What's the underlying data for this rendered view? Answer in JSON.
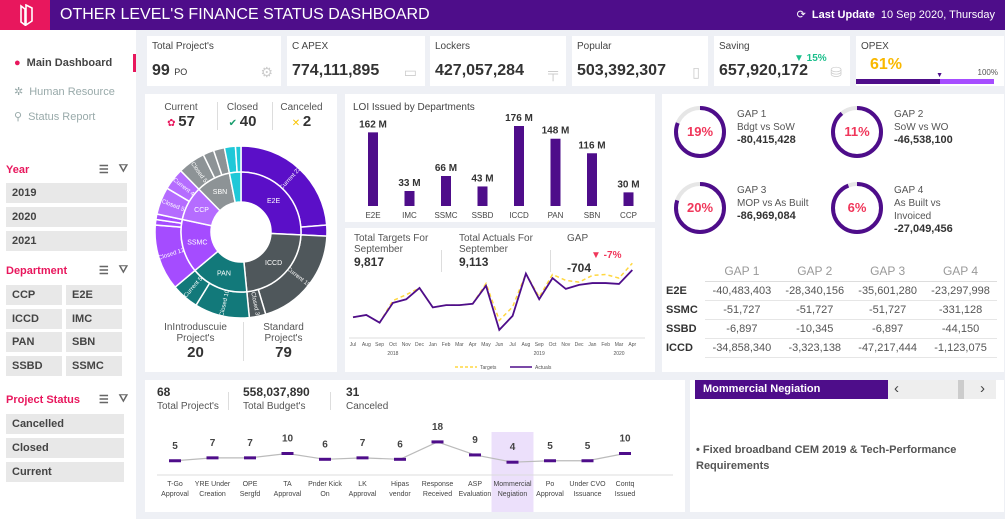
{
  "header": {
    "title": "OTHER LEVEL'S FINANCE STATUS DASHBOARD",
    "last_update_label": "Last Update",
    "last_update_value": "10 Sep 2020, Thursday"
  },
  "sidebar": {
    "nav": [
      {
        "label": "Main Dashboard"
      },
      {
        "label": "Human Resource"
      },
      {
        "label": "Status Report"
      }
    ],
    "year_label": "Year",
    "years": [
      "2019",
      "2020",
      "2021"
    ],
    "department_label": "Department",
    "departments": [
      "CCP",
      "E2E",
      "ICCD",
      "IMC",
      "PAN",
      "SBN",
      "SSBD",
      "SSMC"
    ],
    "status_label": "Project Status",
    "statuses": [
      "Cancelled",
      "Closed",
      "Current"
    ]
  },
  "kpis": [
    {
      "label": "Total Project's",
      "value": "99",
      "unit": "PO"
    },
    {
      "label": "C APEX",
      "value": "774,111,895"
    },
    {
      "label": "Lockers",
      "value": "427,057,284"
    },
    {
      "label": "Popular",
      "value": "503,392,307"
    },
    {
      "label": "Saving",
      "value": "657,920,172",
      "change": "▼ 15%"
    },
    {
      "label": "OPEX",
      "value": "61%",
      "max_label": "100%",
      "progress": 0.61
    }
  ],
  "status": {
    "current_label": "Current",
    "current": "57",
    "closed_label": "Closed",
    "closed": "40",
    "canceled_label": "Canceled",
    "canceled": "2",
    "intro_label": "InIntroduscuie Project's",
    "intro": "20",
    "standard_label": "Standard Project's",
    "standard": "79"
  },
  "sunburst": {
    "inner": [
      {
        "name": "E2E",
        "color": "#5b0fc8"
      },
      {
        "name": "ICCD",
        "color": "#4f575b"
      },
      {
        "name": "PAN",
        "color": "#12797a"
      },
      {
        "name": "SSMC",
        "color": "#a54cff"
      },
      {
        "name": "CCP",
        "color": "#b56cff"
      },
      {
        "name": "SBN",
        "color": "#8d9396"
      },
      {
        "name": "",
        "color": "#1fc8d8"
      }
    ],
    "outer": [
      {
        "parent": 0,
        "label": "Current 23",
        "value": 23
      },
      {
        "parent": 0,
        "label": "",
        "value": 2
      },
      {
        "parent": 1,
        "label": "Current 19",
        "value": 19
      },
      {
        "parent": 1,
        "label": "Closed 3",
        "value": 3
      },
      {
        "parent": 2,
        "label": "Closed 10",
        "value": 10
      },
      {
        "parent": 2,
        "label": "Current 5",
        "value": 5
      },
      {
        "parent": 3,
        "label": "Closed 12",
        "value": 12
      },
      {
        "parent": 3,
        "label": "",
        "value": 1
      },
      {
        "parent": 3,
        "label": "",
        "value": 1
      },
      {
        "parent": 4,
        "label": "Closed 5",
        "value": 5
      },
      {
        "parent": 4,
        "label": "Current 4",
        "value": 4
      },
      {
        "parent": 5,
        "label": "Closed 5",
        "value": 5
      },
      {
        "parent": 5,
        "label": "",
        "value": 2
      },
      {
        "parent": 5,
        "label": "",
        "value": 2
      },
      {
        "parent": 6,
        "label": "",
        "value": 2
      },
      {
        "parent": 6,
        "label": "",
        "value": 1
      }
    ]
  },
  "chart_data": [
    {
      "type": "bar",
      "title": "LOI Issued by Departments",
      "categories": [
        "E2E",
        "IMC",
        "SSMC",
        "SSBD",
        "ICCD",
        "PAN",
        "SBN",
        "CCP"
      ],
      "values": [
        162,
        33,
        66,
        43,
        176,
        148,
        116,
        30
      ],
      "labels": [
        "162 M",
        "33 M",
        "66 M",
        "43 M",
        "176 M",
        "148 M",
        "116 M",
        "30 M"
      ],
      "color": "#4e0d8a"
    },
    {
      "type": "line",
      "x": [
        "Jul",
        "Aug",
        "Sep",
        "Oct",
        "Nov",
        "Dec",
        "Jan",
        "Feb",
        "Mar",
        "Apr",
        "May",
        "Jun",
        "Jul",
        "Aug",
        "Sep",
        "Oct",
        "Nov",
        "Dec",
        "Jan",
        "Feb",
        "Mar",
        "Apr"
      ],
      "years": [
        "2018",
        "2019",
        "2020"
      ],
      "series": [
        {
          "name": "Targets",
          "color": "#ffd740",
          "values": [
            35,
            40,
            23,
            72,
            85,
            100,
            57,
            62,
            62,
            65,
            110,
            28,
            58,
            132,
            80,
            130,
            117,
            113,
            128,
            130,
            122,
            155
          ]
        },
        {
          "name": "Actuals",
          "color": "#4e0d8a",
          "values": [
            35,
            40,
            23,
            67,
            75,
            100,
            57,
            62,
            62,
            65,
            105,
            7,
            38,
            132,
            75,
            122,
            98,
            107,
            111,
            111,
            109,
            140
          ]
        }
      ]
    },
    {
      "type": "line",
      "categories": [
        "T-Go Approval",
        "YRE Under Creation",
        "OPE Sergfd",
        "TA Approval",
        "Pnder Kick On",
        "LK Approval",
        "Hipas vendor",
        "Response Received",
        "ASP Evaluation",
        "Mommercial Negiation",
        "Po Approval",
        "Under CVO Issuance",
        "Contq Issued"
      ],
      "values": [
        5,
        7,
        7,
        10,
        6,
        7,
        6,
        18,
        9,
        4,
        5,
        5,
        10
      ],
      "highlight": "Mommercial Negiation"
    }
  ],
  "targets": {
    "t_label": "Total Targets For September",
    "t": "9,817",
    "a_label": "Total Actuals For September",
    "a": "9,113",
    "gap_label": "GAP",
    "gap": "-704",
    "gap_pct": "▼ -7%"
  },
  "gaps": [
    {
      "title": "GAP 1",
      "sub": "Bdgt vs SoW",
      "pct": 19,
      "pct_label": "19%",
      "value": "-80,415,428"
    },
    {
      "title": "GAP 2",
      "sub": "SoW vs WO",
      "pct": 11,
      "pct_label": "11%",
      "value": "-46,538,100"
    },
    {
      "title": "GAP 3",
      "sub": "MOP vs As Built",
      "pct": 20,
      "pct_label": "20%",
      "value": "-86,969,084"
    },
    {
      "title": "GAP 4",
      "sub": "As Built vs Invoiced",
      "pct": 6,
      "pct_label": "6%",
      "value": "-27,049,456"
    }
  ],
  "gap_table": {
    "headers": [
      "GAP  1",
      "GAP  2",
      "GAP  3",
      "GAP  4"
    ],
    "rows": [
      {
        "name": "E2E",
        "v": [
          "-40,483,403",
          "-28,340,156",
          "-35,601,280",
          "-23,297,998"
        ]
      },
      {
        "name": "SSMC",
        "v": [
          "-51,727",
          "-51,727",
          "-51,727",
          "-331,128"
        ]
      },
      {
        "name": "SSBD",
        "v": [
          "-6,897",
          "-10,345",
          "-6,897",
          "-44,150"
        ]
      },
      {
        "name": "ICCD",
        "v": [
          "-34,858,340",
          "-3,323,138",
          "-47,217,444",
          "-1,123,075"
        ]
      }
    ]
  },
  "bottom": {
    "projects": "68",
    "projects_label": "Total Project's",
    "budget": "558,037,890",
    "budget_label": "Total Budget's",
    "canceled": "31",
    "canceled_label": "Canceled"
  },
  "detail": {
    "selected": "Mommercial Negiation",
    "prev": "‹",
    "next": "›",
    "text": "• Fixed broadband CEM 2019 & Tech-Performance Requirements"
  }
}
